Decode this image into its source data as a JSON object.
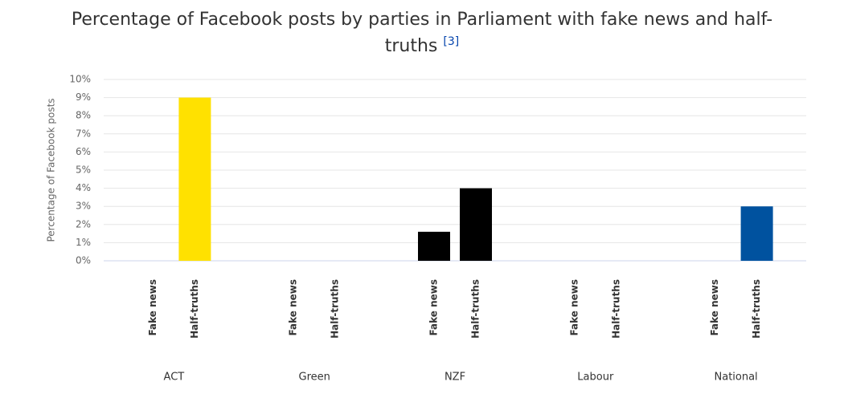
{
  "chart_data": {
    "type": "bar",
    "title": "Percentage of Facebook posts by parties in Parliament with fake news and half-truths",
    "title_note": "[3]",
    "y_label": "Percentage of Facebook posts",
    "categories": [
      "ACT",
      "Green",
      "NZF",
      "Labour",
      "National"
    ],
    "subcategories": [
      "Fake news",
      "Half-truths"
    ],
    "values": [
      [
        0,
        9
      ],
      [
        0,
        0
      ],
      [
        1.6,
        4
      ],
      [
        0,
        0
      ],
      [
        0,
        3
      ]
    ],
    "colors": [
      "#FFE100",
      "#098137",
      "#000000",
      "#D82A20",
      "#00529F"
    ],
    "ylim": [
      0,
      10
    ],
    "yticks": [
      {
        "value": 0,
        "label": "0%"
      },
      {
        "value": 1,
        "label": "1%"
      },
      {
        "value": 2,
        "label": "2%"
      },
      {
        "value": 3,
        "label": "3%"
      },
      {
        "value": 4,
        "label": "4%"
      },
      {
        "value": 5,
        "label": "5%"
      },
      {
        "value": 6,
        "label": "6%"
      },
      {
        "value": 7,
        "label": "7%"
      },
      {
        "value": 8,
        "label": "8%"
      },
      {
        "value": 9,
        "label": "9%"
      },
      {
        "value": 10,
        "label": "10%"
      }
    ],
    "grid": true
  }
}
